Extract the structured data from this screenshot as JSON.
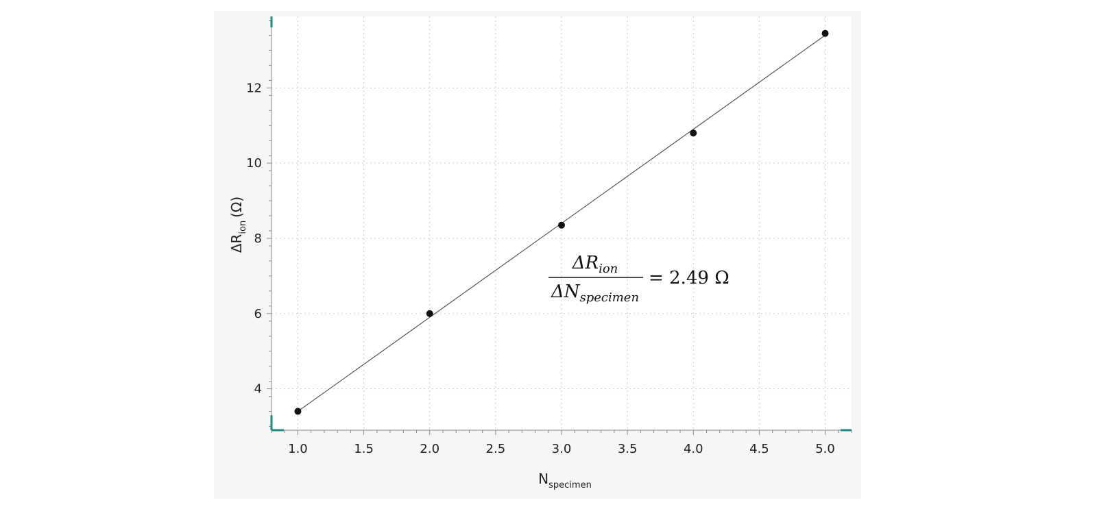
{
  "chart_data": {
    "type": "scatter",
    "x": [
      1.0,
      2.0,
      3.0,
      4.0,
      5.0
    ],
    "y": [
      3.4,
      6.0,
      8.35,
      10.8,
      13.45
    ],
    "fit_line": {
      "x": [
        1.0,
        5.0
      ],
      "y": [
        3.4,
        13.4
      ]
    },
    "xlabel": {
      "main": "N",
      "sub": "specimen"
    },
    "ylabel": {
      "prefix": "ΔR",
      "sub": "ion",
      "unit": "(Ω)"
    },
    "xlim": [
      0.8,
      5.2
    ],
    "ylim": [
      2.9,
      13.9
    ],
    "x_ticks": [
      "1.0",
      "1.5",
      "2.0",
      "2.5",
      "3.0",
      "3.5",
      "4.0",
      "4.5",
      "5.0"
    ],
    "x_tick_values": [
      1.0,
      1.5,
      2.0,
      2.5,
      3.0,
      3.5,
      4.0,
      4.5,
      5.0
    ],
    "y_ticks": [
      "4",
      "6",
      "8",
      "10",
      "12"
    ],
    "y_tick_values": [
      4,
      6,
      8,
      10,
      12
    ],
    "grid": true,
    "annotation": {
      "num_prefix": "ΔR",
      "num_sub": "ion",
      "den_prefix": "ΔN",
      "den_sub": "specimen",
      "rhs": "= 2.49 Ω"
    },
    "colors": {
      "frame_accent": "#1f8b85",
      "points": "#111111",
      "line": "#555555",
      "grid": "#cfcfcf"
    }
  }
}
